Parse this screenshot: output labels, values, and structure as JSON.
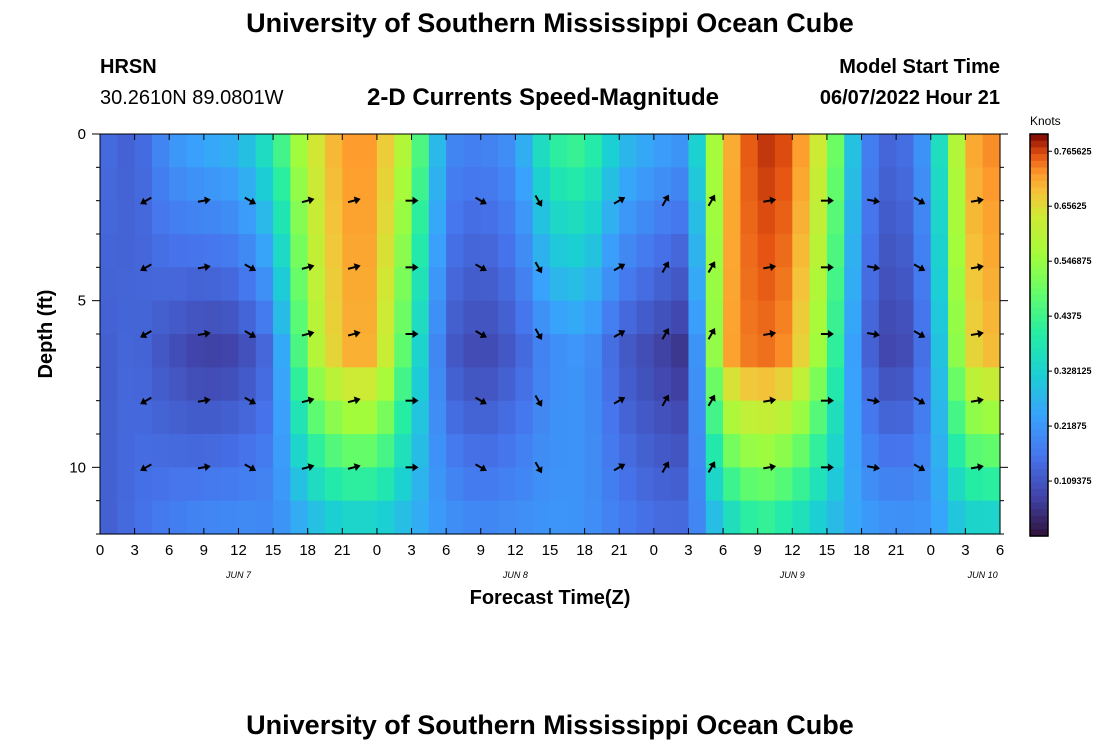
{
  "page": {
    "title": "University of Southern Mississippi Ocean Cube",
    "station_name": "HRSN",
    "station_coords": "30.2610N  89.0801W",
    "subtitle": "2-D Currents Speed-Magnitude",
    "model_start_label": "Model Start Time",
    "model_start_value": "06/07/2022 Hour 21",
    "footer_title": "University of Southern Mississippi Ocean Cube"
  },
  "chart_data": {
    "type": "heatmap",
    "title": "2-D Currents Speed-Magnitude",
    "xlabel": "Forecast Time(Z)",
    "ylabel": "Depth (ft)",
    "colorbar_label": "Knots",
    "x_start_hour": 0,
    "x_end_hour": 78,
    "x_tick_labels": [
      "0",
      "3",
      "6",
      "9",
      "12",
      "15",
      "18",
      "21",
      "0",
      "3",
      "6",
      "9",
      "12",
      "15",
      "18",
      "21",
      "0",
      "3",
      "6",
      "9",
      "12",
      "15",
      "18",
      "21",
      "0",
      "3",
      "6"
    ],
    "date_labels": [
      {
        "label": "JUN 7",
        "hour": 12
      },
      {
        "label": "JUN 8",
        "hour": 36
      },
      {
        "label": "JUN 9",
        "hour": 60
      },
      {
        "label": "JUN 10",
        "hour": 76.5
      }
    ],
    "ylim": [
      0,
      12
    ],
    "y_tick_labels": [
      "0",
      "5",
      "10"
    ],
    "y_tick_values": [
      0,
      5,
      10
    ],
    "colorbar_ticks": [
      "0.765625",
      "0.65625",
      "0.546875",
      "0.4375",
      "0.328125",
      "0.21875",
      "0.109375"
    ],
    "colorbar_tick_values": [
      0.765625,
      0.65625,
      0.546875,
      0.4375,
      0.328125,
      0.21875,
      0.109375
    ],
    "vmin": 0.0,
    "vmax": 0.8,
    "speed_profile_by_hour": [
      {
        "t": 0,
        "surface": 0.15,
        "mid": 0.12,
        "bottom": 0.12
      },
      {
        "t": 3,
        "surface": 0.12,
        "mid": 0.14,
        "bottom": 0.15
      },
      {
        "t": 6,
        "surface": 0.22,
        "mid": 0.1,
        "bottom": 0.18
      },
      {
        "t": 9,
        "surface": 0.26,
        "mid": 0.07,
        "bottom": 0.2
      },
      {
        "t": 12,
        "surface": 0.28,
        "mid": 0.08,
        "bottom": 0.21
      },
      {
        "t": 15,
        "surface": 0.4,
        "mid": 0.15,
        "bottom": 0.2
      },
      {
        "t": 18,
        "surface": 0.62,
        "mid": 0.55,
        "bottom": 0.25
      },
      {
        "t": 21,
        "surface": 0.72,
        "mid": 0.7,
        "bottom": 0.3
      },
      {
        "t": 24,
        "surface": 0.72,
        "mid": 0.7,
        "bottom": 0.3
      },
      {
        "t": 27,
        "surface": 0.55,
        "mid": 0.4,
        "bottom": 0.26
      },
      {
        "t": 30,
        "surface": 0.2,
        "mid": 0.12,
        "bottom": 0.22
      },
      {
        "t": 33,
        "surface": 0.18,
        "mid": 0.08,
        "bottom": 0.2
      },
      {
        "t": 36,
        "surface": 0.22,
        "mid": 0.12,
        "bottom": 0.21
      },
      {
        "t": 39,
        "surface": 0.42,
        "mid": 0.2,
        "bottom": 0.22
      },
      {
        "t": 42,
        "surface": 0.45,
        "mid": 0.22,
        "bottom": 0.21
      },
      {
        "t": 45,
        "surface": 0.3,
        "mid": 0.12,
        "bottom": 0.18
      },
      {
        "t": 48,
        "surface": 0.25,
        "mid": 0.08,
        "bottom": 0.15
      },
      {
        "t": 51,
        "surface": 0.22,
        "mid": 0.05,
        "bottom": 0.15
      },
      {
        "t": 54,
        "surface": 0.68,
        "mid": 0.7,
        "bottom": 0.3
      },
      {
        "t": 57,
        "surface": 0.78,
        "mid": 0.75,
        "bottom": 0.4
      },
      {
        "t": 60,
        "surface": 0.76,
        "mid": 0.72,
        "bottom": 0.35
      },
      {
        "t": 63,
        "surface": 0.6,
        "mid": 0.5,
        "bottom": 0.28
      },
      {
        "t": 66,
        "surface": 0.2,
        "mid": 0.15,
        "bottom": 0.24
      },
      {
        "t": 69,
        "surface": 0.12,
        "mid": 0.06,
        "bottom": 0.22
      },
      {
        "t": 72,
        "surface": 0.25,
        "mid": 0.18,
        "bottom": 0.22
      },
      {
        "t": 75,
        "surface": 0.7,
        "mid": 0.65,
        "bottom": 0.3
      },
      {
        "t": 78,
        "surface": 0.74,
        "mid": 0.7,
        "bottom": 0.3
      }
    ],
    "vector_depths_ft": [
      2,
      4,
      6,
      8,
      10
    ],
    "vector_direction_deg_by_hour": [
      {
        "t": 4,
        "deg": 240
      },
      {
        "t": 9,
        "deg": 80
      },
      {
        "t": 13,
        "deg": 120
      },
      {
        "t": 18,
        "deg": 75
      },
      {
        "t": 22,
        "deg": 75
      },
      {
        "t": 27,
        "deg": 90
      },
      {
        "t": 33,
        "deg": 120
      },
      {
        "t": 38,
        "deg": 150
      },
      {
        "t": 45,
        "deg": 60
      },
      {
        "t": 49,
        "deg": 30
      },
      {
        "t": 53,
        "deg": 30
      },
      {
        "t": 58,
        "deg": 80
      },
      {
        "t": 63,
        "deg": 90
      },
      {
        "t": 67,
        "deg": 100
      },
      {
        "t": 71,
        "deg": 120
      },
      {
        "t": 76,
        "deg": 80
      }
    ]
  }
}
